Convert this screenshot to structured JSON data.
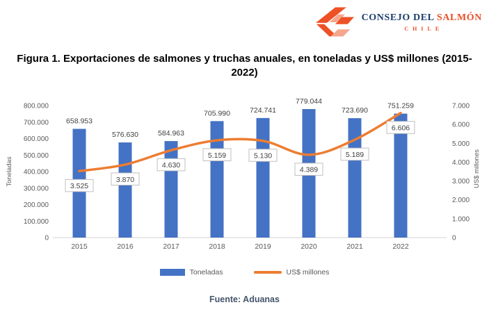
{
  "logo": {
    "name_dark": "CONSEJO DEL",
    "name_accent": "SALMÓN",
    "subtitle": "CHILE"
  },
  "title": "Figura 1. Exportaciones de salmones y truchas anuales, en toneladas y US$ millones (2015-2022)",
  "footer": "Fuente: Aduanas",
  "colors": {
    "bar": "#4472C4",
    "line": "#ED7D31",
    "logo_navy": "#1C3E6E",
    "logo_orange": "#E8502A",
    "axis_text": "#595959",
    "value_text": "#404040",
    "box_border": "#BFBFBF",
    "baseline": "#D9D9D9",
    "footer_text": "#44546A"
  },
  "chart_data": {
    "type": "bar",
    "combo": "bar+line",
    "title": "Figura 1. Exportaciones de salmones y truchas anuales, en toneladas y US$ millones (2015-2022)",
    "categories": [
      "2015",
      "2016",
      "2017",
      "2018",
      "2019",
      "2020",
      "2021",
      "2022"
    ],
    "series": [
      {
        "name": "Toneladas",
        "type": "bar",
        "axis": "left",
        "values": [
          658953,
          576630,
          584963,
          705990,
          724741,
          779044,
          723690,
          751259
        ],
        "labels": [
          "658.953",
          "576.630",
          "584.963",
          "705.990",
          "724.741",
          "779.044",
          "723.690",
          "751.259"
        ]
      },
      {
        "name": "US$ millones",
        "type": "line",
        "axis": "right",
        "values": [
          3525,
          3870,
          4630,
          5159,
          5130,
          4389,
          5189,
          6606
        ],
        "labels": [
          "3.525",
          "3.870",
          "4.630",
          "5.159",
          "5.130",
          "4.389",
          "5.189",
          "6.606"
        ]
      }
    ],
    "left_axis": {
      "title": "Toneladas",
      "min": 0,
      "max": 800000,
      "step": 100000,
      "tick_labels": [
        "0",
        "100.000",
        "200.000",
        "300.000",
        "400.000",
        "500.000",
        "600.000",
        "700.000",
        "800.000"
      ]
    },
    "right_axis": {
      "title": "US$ millones",
      "min": 0,
      "max": 7000,
      "step": 1000,
      "tick_labels": [
        "0",
        "1.000",
        "2.000",
        "3.000",
        "4.000",
        "5.000",
        "6.000",
        "7.000"
      ]
    },
    "grid": false,
    "legend_position": "bottom"
  }
}
